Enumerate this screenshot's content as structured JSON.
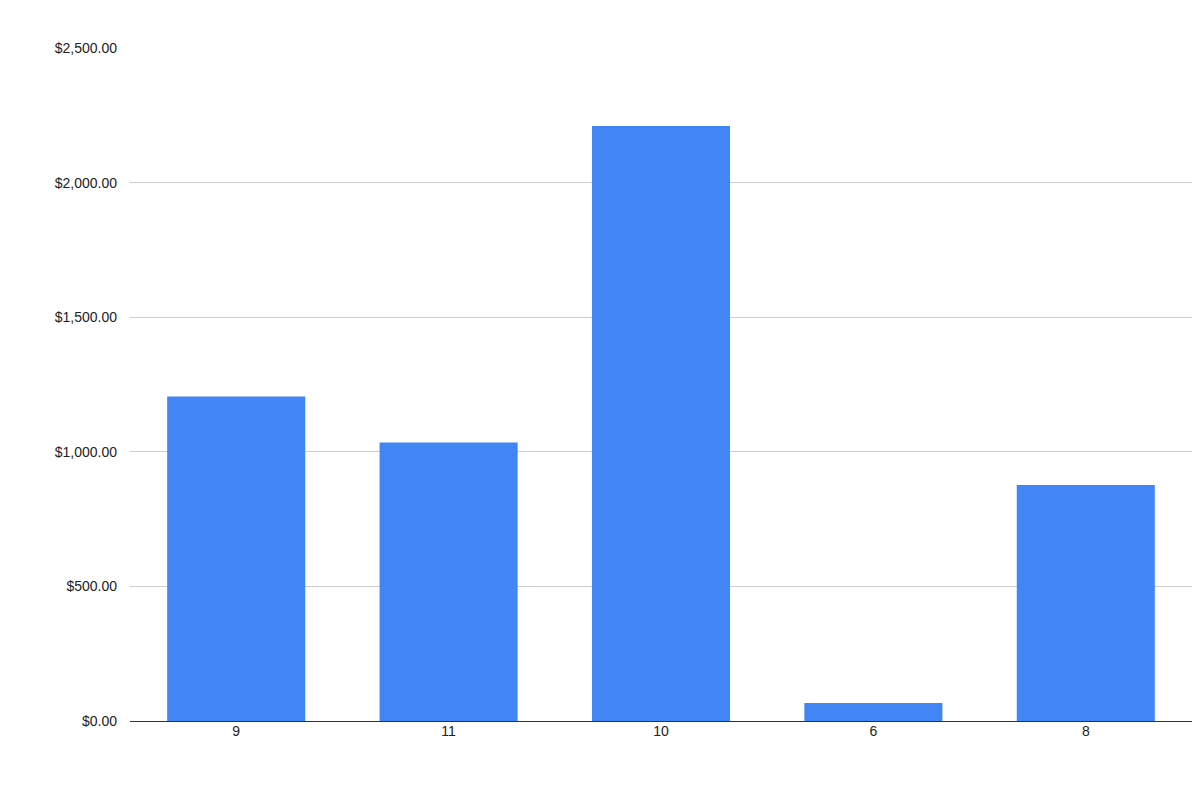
{
  "chart_data": {
    "type": "bar",
    "categories": [
      "9",
      "11",
      "10",
      "6",
      "8"
    ],
    "values": [
      1205,
      1035,
      2210,
      67,
      877
    ],
    "color": "#4285f4",
    "ylim": [
      0,
      2500
    ],
    "yticks": [
      {
        "value": 0,
        "label": "$0.00"
      },
      {
        "value": 500,
        "label": "$500.00"
      },
      {
        "value": 1000,
        "label": "$1,000.00"
      },
      {
        "value": 1500,
        "label": "$1,500.00"
      },
      {
        "value": 2000,
        "label": "$2,000.00"
      },
      {
        "value": 2500,
        "label": "$2,500.00"
      }
    ],
    "grid": true
  }
}
